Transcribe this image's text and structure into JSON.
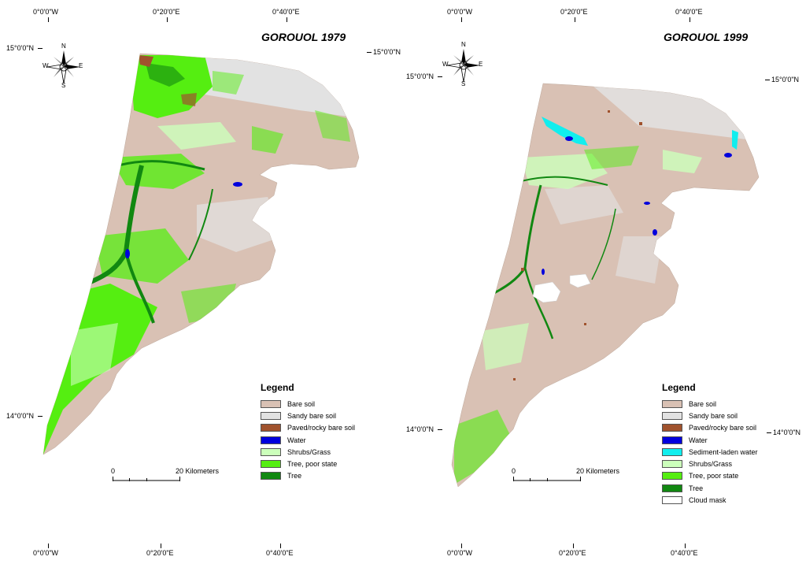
{
  "maps": [
    {
      "title": "GOROUOL 1979",
      "coords": {
        "top_left": "0°0'0\"W",
        "top_mid": "0°20'0\"E",
        "top_right": "0°40'0\"E",
        "left_top": "15°0'0\"N",
        "right_top": "15°0'0\"N",
        "left_bottom": "14°0'0\"N",
        "right_bottom": "",
        "bottom_left": "0°0'0\"W",
        "bottom_mid": "0°20'0\"E",
        "bottom_right": "0°40'0\"E"
      },
      "scale": {
        "zero": "0",
        "end": "20 Kilometers"
      },
      "compass": {
        "n": "N",
        "s": "S",
        "e": "E",
        "w": "W"
      },
      "legend": {
        "title": "Legend",
        "items": [
          {
            "label": "Bare soil",
            "color": "#d9c1b4"
          },
          {
            "label": "Sandy bare soil",
            "color": "#e2e2e2"
          },
          {
            "label": "Paved/rocky bare soil",
            "color": "#a0522d"
          },
          {
            "label": "Water",
            "color": "#0000dd"
          },
          {
            "label": "Shrubs/Grass",
            "color": "#ccffbb"
          },
          {
            "label": "Tree, poor state",
            "color": "#55ee11"
          },
          {
            "label": "Tree",
            "color": "#118811"
          }
        ]
      }
    },
    {
      "title": "GOROUOL 1999",
      "coords": {
        "top_left": "0°0'0\"W",
        "top_mid": "0°20'0\"E",
        "top_right": "0°40'0\"E",
        "left_top": "15°0'0\"N",
        "right_top": "15°0'0\"N",
        "left_bottom": "14°0'0\"N",
        "right_bottom": "14°0'0\"N",
        "bottom_left": "0°0'0\"W",
        "bottom_mid": "0°20'0\"E",
        "bottom_right": "0°40'0\"E"
      },
      "scale": {
        "zero": "0",
        "end": "20 Kilometers"
      },
      "compass": {
        "n": "N",
        "s": "S",
        "e": "E",
        "w": "W"
      },
      "legend": {
        "title": "Legend",
        "items": [
          {
            "label": "Bare soil",
            "color": "#d9c1b4"
          },
          {
            "label": "Sandy bare soil",
            "color": "#e2e2e2"
          },
          {
            "label": "Paved/rocky bare soil",
            "color": "#a0522d"
          },
          {
            "label": "Water",
            "color": "#0000dd"
          },
          {
            "label": "Sediment-laden water",
            "color": "#11eeee"
          },
          {
            "label": "Shrubs/Grass",
            "color": "#ccffbb"
          },
          {
            "label": "Tree, poor state",
            "color": "#55ee11"
          },
          {
            "label": "Tree",
            "color": "#118811"
          },
          {
            "label": "Cloud mask",
            "color": "#ffffff"
          }
        ]
      }
    }
  ]
}
